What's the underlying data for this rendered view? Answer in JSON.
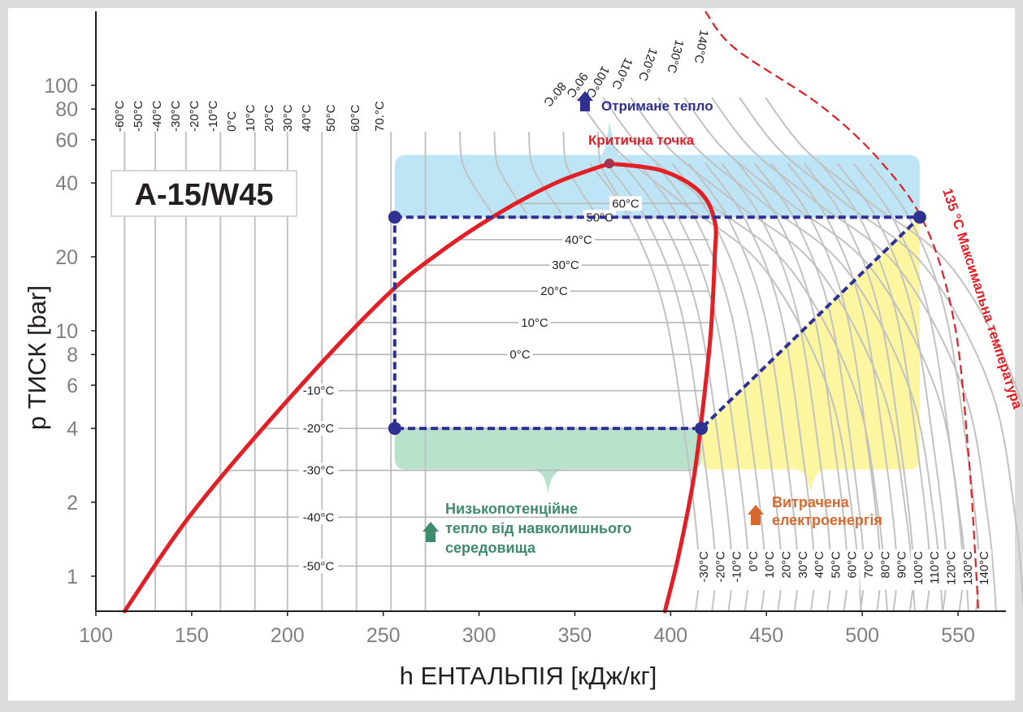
{
  "chart_data": {
    "type": "line",
    "title": "A-15/W45",
    "xlabel": "h ЕНТАЛЬПІЯ [кДж/кг]",
    "ylabel": "p ТИСК [bar]",
    "xlim": [
      100,
      575
    ],
    "ylim_log": [
      0.72,
      200
    ],
    "x_ticks": [
      100,
      150,
      200,
      250,
      300,
      350,
      400,
      450,
      500,
      550
    ],
    "y_ticks": [
      1,
      2,
      4,
      6,
      8,
      10,
      20,
      40,
      60,
      80,
      100
    ],
    "isotherm_top_labels": [
      "-60°C",
      "-50°C",
      "-40°C",
      "-30°C",
      "-20°C",
      "-10°C",
      "0°C",
      "10°C",
      "20°C",
      "30°C",
      "40°C",
      "50°C",
      "60°C",
      "70.°C",
      "80°C",
      "90°C",
      "100°C",
      "110°C",
      "120°C",
      "130°C",
      "140°C"
    ],
    "isotherm_bottom_labels": [
      "-30°C",
      "-20°C",
      "-10°C",
      "0°C",
      "10°C",
      "20°C",
      "30°C",
      "40°C",
      "50°C",
      "60°C",
      "70°C",
      "80°C",
      "90°C",
      "100°C",
      "110°C",
      "120°C",
      "130°C",
      "140°C"
    ],
    "saturation_labels": [
      {
        "label": "60°C",
        "p": 33.0
      },
      {
        "label": "50°C",
        "p": 29.0
      },
      {
        "label": "40°C",
        "p": 23.5
      },
      {
        "label": "30°C",
        "p": 18.5
      },
      {
        "label": "20°C",
        "p": 14.5
      },
      {
        "label": "10°C",
        "p": 10.8
      },
      {
        "label": "0°C",
        "p": 8.0
      },
      {
        "label": "-10°C",
        "p": 5.7
      },
      {
        "label": "-20°C",
        "p": 4.0
      },
      {
        "label": "-30°C",
        "p": 2.7
      },
      {
        "label": "-40°C",
        "p": 1.74
      },
      {
        "label": "-50°C",
        "p": 1.1
      }
    ],
    "dome": {
      "liquid": [
        {
          "h": 115,
          "p": 0.72
        },
        {
          "h": 150,
          "p": 1.8
        },
        {
          "h": 200,
          "p": 5.2
        },
        {
          "h": 250,
          "p": 13.5
        },
        {
          "h": 280,
          "p": 21
        },
        {
          "h": 310,
          "p": 30
        },
        {
          "h": 340,
          "p": 40
        },
        {
          "h": 368,
          "p": 48
        }
      ],
      "vapor": [
        {
          "h": 368,
          "p": 48
        },
        {
          "h": 395,
          "p": 45
        },
        {
          "h": 415,
          "p": 37
        },
        {
          "h": 423,
          "p": 28
        },
        {
          "h": 423,
          "p": 20
        },
        {
          "h": 421,
          "p": 10
        },
        {
          "h": 417,
          "p": 5
        },
        {
          "h": 412,
          "p": 2.5
        },
        {
          "h": 404,
          "p": 1.2
        },
        {
          "h": 397,
          "p": 0.72
        }
      ]
    },
    "critical_point": {
      "h": 368,
      "p": 48,
      "label": "Критична точка"
    },
    "cycle": [
      {
        "h": 256,
        "p": 29
      },
      {
        "h": 530,
        "p": 29
      },
      {
        "h": 416,
        "p": 4.0
      },
      {
        "h": 256,
        "p": 4.0
      }
    ],
    "regions": {
      "heat_out": {
        "label": "Отримане тепло",
        "color": "#bde5f5"
      },
      "heat_in": {
        "label_lines": [
          "Низькопотенційне",
          "тепло від навколишнього",
          "середовища"
        ],
        "color": "#b9e2cc"
      },
      "work": {
        "label_lines": [
          "Витрачена",
          "електроенергія"
        ],
        "color": "#fdf6a0"
      }
    },
    "max_temperature": {
      "label": "135 °С Максимальна температура",
      "h_at_low_p": 560
    }
  },
  "colors": {
    "dome": "#e31e24",
    "cycle": "#2e3192",
    "isotherm": "#c2c2c2",
    "axis": "#231f20",
    "heat_out_text": "#2e3192",
    "heat_in_text": "#3d8b6e",
    "work_text": "#d8692e",
    "critical_text": "#e31e24"
  }
}
